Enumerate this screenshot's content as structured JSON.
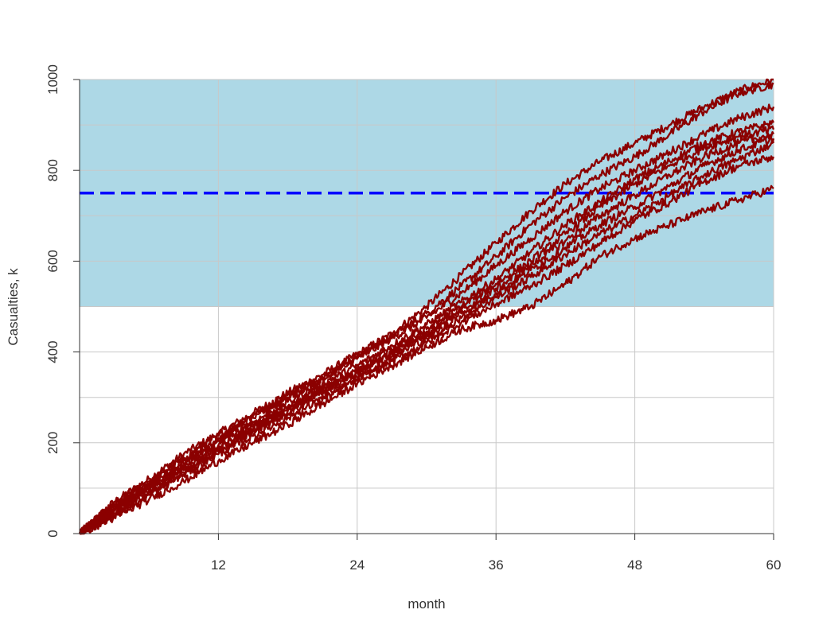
{
  "chart_data": {
    "type": "line",
    "title": "",
    "xlabel": "month",
    "ylabel": "Casualties, k",
    "xlim": [
      0,
      60
    ],
    "ylim": [
      0,
      1000
    ],
    "x_ticks": [
      12,
      24,
      36,
      48,
      60
    ],
    "x_tick_labels": [
      "12",
      "24",
      "36",
      "48",
      "60"
    ],
    "y_ticks": [
      0,
      200,
      400,
      600,
      800,
      1000
    ],
    "y_tick_labels": [
      "0",
      "200",
      "400",
      "600",
      "800",
      "1000"
    ],
    "grid": true,
    "shaded_band": {
      "y_from": 500,
      "y_to": 1000,
      "color": "#add8e6"
    },
    "reference_line": {
      "y": 750,
      "color": "#0000ff",
      "style": "dashed"
    },
    "series_color": "#8b0000",
    "x": [
      0,
      3,
      6,
      9,
      12,
      15,
      18,
      21,
      24,
      27,
      30,
      33,
      36,
      39,
      42,
      45,
      48,
      51,
      54,
      57,
      60
    ],
    "series": [
      {
        "values": [
          0,
          70,
          120,
          175,
          220,
          265,
          310,
          350,
          395,
          440,
          500,
          570,
          640,
          710,
          770,
          820,
          860,
          900,
          940,
          975,
          1000
        ]
      },
      {
        "values": [
          0,
          65,
          115,
          165,
          215,
          260,
          305,
          345,
          390,
          435,
          485,
          545,
          610,
          680,
          740,
          790,
          830,
          880,
          930,
          970,
          990
        ]
      },
      {
        "values": [
          0,
          60,
          110,
          160,
          210,
          255,
          300,
          340,
          385,
          430,
          475,
          530,
          590,
          650,
          710,
          760,
          800,
          840,
          880,
          915,
          940
        ]
      },
      {
        "values": [
          0,
          55,
          105,
          155,
          205,
          245,
          290,
          330,
          370,
          415,
          460,
          510,
          560,
          620,
          680,
          730,
          780,
          820,
          860,
          885,
          905
        ]
      },
      {
        "values": [
          0,
          60,
          105,
          150,
          195,
          240,
          280,
          320,
          360,
          405,
          450,
          500,
          550,
          600,
          660,
          720,
          770,
          810,
          850,
          875,
          890
        ]
      },
      {
        "values": [
          0,
          50,
          95,
          140,
          185,
          230,
          270,
          315,
          355,
          400,
          445,
          490,
          540,
          590,
          645,
          700,
          745,
          790,
          830,
          860,
          880
        ]
      },
      {
        "values": [
          0,
          55,
          100,
          145,
          190,
          235,
          275,
          315,
          355,
          395,
          440,
          485,
          530,
          580,
          630,
          680,
          720,
          765,
          810,
          845,
          870
        ]
      },
      {
        "values": [
          0,
          45,
          90,
          135,
          180,
          225,
          265,
          305,
          345,
          390,
          430,
          475,
          520,
          565,
          615,
          660,
          700,
          745,
          790,
          825,
          860
        ]
      },
      {
        "values": [
          0,
          40,
          85,
          130,
          175,
          215,
          255,
          295,
          340,
          380,
          420,
          465,
          505,
          545,
          590,
          640,
          690,
          730,
          775,
          810,
          830
        ]
      },
      {
        "values": [
          0,
          35,
          75,
          115,
          160,
          200,
          240,
          285,
          330,
          370,
          410,
          450,
          470,
          500,
          550,
          610,
          650,
          680,
          710,
          735,
          760
        ]
      }
    ]
  }
}
